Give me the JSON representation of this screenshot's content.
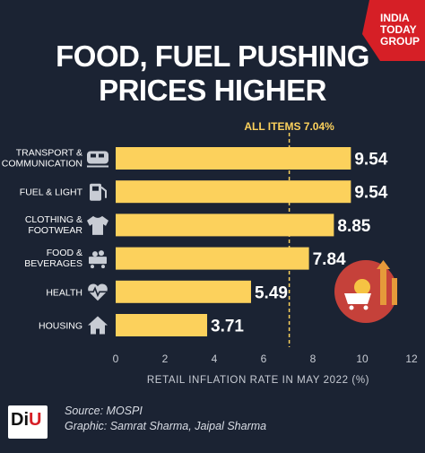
{
  "logo": {
    "line1": "INDIA",
    "line2": "TODAY",
    "line3": "GROUP"
  },
  "title_line1": "FOOD, FUEL PUSHING",
  "title_line2": "PRICES HIGHER",
  "reference_label": "ALL ITEMS 7.04%",
  "chart_data": {
    "type": "bar",
    "orientation": "horizontal",
    "categories": [
      [
        "TRANSPORT &",
        "COMMUNICATION"
      ],
      [
        "FUEL & LIGHT"
      ],
      [
        "CLOTHING &",
        "FOOTWEAR"
      ],
      [
        "FOOD &",
        "BEVERAGES"
      ],
      [
        "HEALTH"
      ],
      [
        "HOUSING"
      ]
    ],
    "category_icons": [
      "train-icon",
      "fuel-pump-icon",
      "shirt-icon",
      "food-cart-icon",
      "heart-pulse-icon",
      "house-icon"
    ],
    "values": [
      9.54,
      9.54,
      8.85,
      7.84,
      5.49,
      3.71
    ],
    "value_labels": [
      "9.54",
      "9.54",
      "8.85",
      "7.84",
      "5.49",
      "3.71"
    ],
    "reference_line": {
      "value": 7.04,
      "label": "ALL ITEMS 7.04%"
    },
    "xlim": [
      0,
      12
    ],
    "xticks": [
      0,
      2,
      4,
      6,
      8,
      10,
      12
    ],
    "xlabel": "RETAIL INFLATION RATE IN MAY 2022 (%)",
    "ylabel": "",
    "grid": false,
    "colors": {
      "bar": "#fcd15c",
      "background": "#1b2333",
      "text": "#ffffff",
      "reference": "#fcd15c",
      "accent": "#c5413a"
    }
  },
  "source_line": "Source: MOSPI",
  "credit_line": "Graphic: Samrat Sharma, Jaipal Sharma",
  "brand": {
    "d": "D",
    "i": "i",
    "u": "U"
  }
}
